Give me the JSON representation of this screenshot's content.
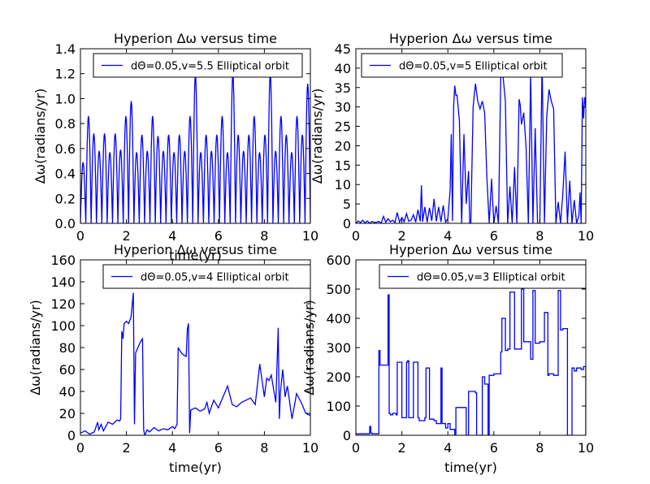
{
  "figure_title": "",
  "chart_data": [
    {
      "type": "line",
      "title": "Hyperion  Δω versus time",
      "xlabel": "time(yr)",
      "ylabel": "Δω(radians/yr)",
      "xlim": [
        0,
        10
      ],
      "ylim": [
        0,
        1.4
      ],
      "xticks": [
        "0",
        "2",
        "4",
        "6",
        "8",
        "10"
      ],
      "yticks": [
        "0.0",
        "0.2",
        "0.4",
        "0.6",
        "0.8",
        "1.0",
        "1.2",
        "1.4"
      ],
      "legend": "dΘ=0.05,v=5.5 Elliptical orbit",
      "legend_loc": "upper-right",
      "series_color": "#0000ff",
      "series_style": "oscillation",
      "series": [
        {
          "name": "dΘ=0.05,v=5.5 Elliptical orbit",
          "peaks": [
            0.49,
            0.86,
            0.72,
            0.58,
            0.72,
            0.57,
            0.72,
            0.59,
            0.86,
            0.98,
            0.57,
            0.71,
            0.58,
            0.86,
            0.7,
            0.58,
            0.71,
            0.57,
            0.71,
            0.58,
            0.86,
            1.2,
            0.57,
            0.71,
            0.58,
            0.71,
            0.86,
            0.57,
            1.2,
            0.71,
            0.58,
            0.71,
            0.86,
            0.57,
            0.71,
            1.2,
            0.58,
            0.86,
            0.71,
            0.57,
            0.86,
            0.71,
            1.12
          ]
        }
      ]
    },
    {
      "type": "line",
      "title": "Hyperion  Δω versus time",
      "xlabel": "",
      "ylabel": "Δω(radians/yr)",
      "xlim": [
        0,
        10
      ],
      "ylim": [
        0,
        45
      ],
      "xticks": [
        "0",
        "2",
        "4",
        "6",
        "8",
        "10"
      ],
      "yticks": [
        "0",
        "5",
        "10",
        "15",
        "20",
        "25",
        "30",
        "35",
        "40",
        "45"
      ],
      "legend": "dΘ=0.05,v=5 Elliptical orbit",
      "legend_loc": "upper-right",
      "series_color": "#0000ff",
      "series_style": "path",
      "series": [
        {
          "name": "dΘ=0.05,v=5 Elliptical orbit",
          "x": [
            0,
            0.1,
            0.2,
            0.3,
            0.4,
            0.5,
            0.6,
            0.7,
            0.8,
            0.9,
            1.0,
            1.1,
            1.2,
            1.3,
            1.4,
            1.5,
            1.6,
            1.7,
            1.8,
            1.9,
            2.0,
            2.1,
            2.2,
            2.3,
            2.4,
            2.5,
            2.6,
            2.7,
            2.8,
            2.85,
            2.9,
            3.0,
            3.1,
            3.2,
            3.3,
            3.4,
            3.5,
            3.6,
            3.7,
            3.8,
            3.9,
            4.0,
            4.1,
            4.15,
            4.2,
            4.25,
            4.3,
            4.35,
            4.4,
            4.5,
            4.6,
            4.7,
            4.8,
            4.9,
            4.95,
            5.0,
            5.1,
            5.2,
            5.3,
            5.4,
            5.5,
            5.6,
            5.7,
            5.8,
            5.9,
            6.0,
            6.1,
            6.2,
            6.3,
            6.4,
            6.5,
            6.6,
            6.7,
            6.8,
            6.9,
            7.0,
            7.1,
            7.15,
            7.2,
            7.3,
            7.4,
            7.5,
            7.6,
            7.7,
            7.8,
            7.9,
            8.0,
            8.1,
            8.2,
            8.3,
            8.4,
            8.5,
            8.6,
            8.7,
            8.8,
            8.9,
            9.0,
            9.1,
            9.2,
            9.3,
            9.4,
            9.5,
            9.6,
            9.7,
            9.75,
            9.8,
            9.85,
            9.9,
            9.95,
            10.0
          ],
          "y": [
            0,
            0.6,
            0.2,
            0.8,
            0.1,
            0.6,
            0,
            0.5,
            0.2,
            0.3,
            0.5,
            0,
            1.8,
            0.3,
            1.2,
            0.4,
            0.8,
            0.2,
            2.8,
            0.3,
            1.5,
            0.4,
            2.5,
            0.5,
            0.8,
            2.2,
            0.3,
            3.5,
            0.5,
            9.8,
            0.4,
            4.2,
            0.3,
            4.0,
            0.6,
            6.3,
            0.5,
            4.2,
            0.4,
            4.6,
            0.3,
            1.2,
            8.5,
            23.0,
            0.6,
            30.0,
            35.5,
            33.0,
            33.0,
            26.5,
            0,
            23.0,
            5.0,
            13.5,
            0,
            0,
            30.0,
            36.0,
            31.5,
            29.5,
            31.5,
            28.5,
            11.5,
            0,
            11.5,
            0,
            4.5,
            0,
            37.5,
            38.0,
            31.5,
            0,
            9.5,
            0,
            14.5,
            0,
            32.0,
            30.5,
            25.5,
            28.5,
            20.0,
            0,
            38.5,
            0,
            24.5,
            0,
            0,
            41.5,
            0,
            27.5,
            34.5,
            31.5,
            29.5,
            0,
            5.5,
            0,
            7.5,
            18.5,
            0,
            11.0,
            0,
            6.0,
            0,
            2.0,
            8.0,
            0,
            32.5,
            27.0,
            32.5,
            30.0
          ]
        }
      ]
    },
    {
      "type": "line",
      "title": "Hyperion  Δω versus time",
      "xlabel": "time(yr)",
      "ylabel": "Δω(radians/yr)",
      "xlim": [
        0,
        10
      ],
      "ylim": [
        0,
        160
      ],
      "xticks": [
        "0",
        "2",
        "4",
        "6",
        "8",
        "10"
      ],
      "yticks": [
        "0",
        "20",
        "40",
        "60",
        "80",
        "100",
        "120",
        "140",
        "160"
      ],
      "legend": "dΘ=0.05,v=4 Elliptical orbit",
      "legend_loc": "upper-right",
      "series_color": "#0000ff",
      "series_style": "path",
      "series": [
        {
          "name": "dΘ=0.05,v=4 Elliptical orbit",
          "x": [
            0,
            0.2,
            0.4,
            0.6,
            0.75,
            0.8,
            0.9,
            1.0,
            1.2,
            1.4,
            1.6,
            1.7,
            1.75,
            1.8,
            1.85,
            1.9,
            2.0,
            2.1,
            2.2,
            2.3,
            2.35,
            2.4,
            2.5,
            2.6,
            2.7,
            2.75,
            2.8,
            2.9,
            3.0,
            3.2,
            3.4,
            3.6,
            3.8,
            4.0,
            4.1,
            4.2,
            4.25,
            4.3,
            4.4,
            4.5,
            4.6,
            4.65,
            4.7,
            4.75,
            4.8,
            5.0,
            5.2,
            5.4,
            5.5,
            5.6,
            5.8,
            6.0,
            6.2,
            6.4,
            6.6,
            6.8,
            7.0,
            7.2,
            7.4,
            7.6,
            7.8,
            8.0,
            8.1,
            8.2,
            8.3,
            8.4,
            8.5,
            8.6,
            8.65,
            8.7,
            8.8,
            8.9,
            9.0,
            9.2,
            9.4,
            9.6,
            9.8,
            10.0
          ],
          "y": [
            2,
            4,
            1,
            3,
            12,
            5,
            10,
            4,
            12,
            10,
            14,
            13,
            15,
            95,
            88,
            102,
            104,
            102,
            108,
            130,
            10,
            75,
            80,
            85,
            88,
            5,
            0,
            5,
            3,
            7,
            4,
            6,
            5,
            8,
            6,
            10,
            80,
            78,
            75,
            73,
            72,
            97,
            102,
            2,
            23,
            25,
            22,
            24,
            30,
            20,
            32,
            25,
            35,
            45,
            28,
            26,
            30,
            32,
            34,
            28,
            65,
            35,
            52,
            50,
            55,
            42,
            30,
            98,
            15,
            40,
            60,
            35,
            45,
            15,
            38,
            30,
            20,
            18
          ]
        }
      ]
    },
    {
      "type": "line",
      "title": "Hyperion  Δω versus time",
      "xlabel": "time(yr)",
      "ylabel": "Δω(radians/yr)",
      "xlim": [
        0,
        10
      ],
      "ylim": [
        0,
        600
      ],
      "xticks": [
        "0",
        "2",
        "4",
        "6",
        "8",
        "10"
      ],
      "yticks": [
        "0",
        "100",
        "200",
        "300",
        "400",
        "500",
        "600"
      ],
      "legend": "dΘ=0.05,v=3 Elliptical orbit",
      "legend_loc": "upper-right",
      "series_color": "#0000ff",
      "series_style": "steps",
      "series": [
        {
          "name": "dΘ=0.05,v=3 Elliptical orbit",
          "x": [
            0,
            0.6,
            0.65,
            0.7,
            1.0,
            1.05,
            1.1,
            1.4,
            1.45,
            1.5,
            1.6,
            1.75,
            1.8,
            2.0,
            2.2,
            2.25,
            2.3,
            2.5,
            2.7,
            2.75,
            3.0,
            3.05,
            3.2,
            3.4,
            3.5,
            3.7,
            3.75,
            3.9,
            4.0,
            4.1,
            4.3,
            4.35,
            4.5,
            4.8,
            4.9,
            5.2,
            5.25,
            5.5,
            5.6,
            5.75,
            5.8,
            6.0,
            6.3,
            6.35,
            6.5,
            6.6,
            6.7,
            6.9,
            7.0,
            7.2,
            7.3,
            7.4,
            7.6,
            7.7,
            7.8,
            8.0,
            8.2,
            8.35,
            8.4,
            8.6,
            8.8,
            8.9,
            9.0,
            9.2,
            9.4,
            9.5,
            9.6,
            9.8,
            9.9,
            10.0
          ],
          "y": [
            5,
            30,
            8,
            5,
            290,
            240,
            240,
            480,
            75,
            70,
            75,
            70,
            250,
            60,
            250,
            255,
            60,
            250,
            60,
            50,
            60,
            230,
            55,
            50,
            40,
            230,
            40,
            25,
            40,
            20,
            0,
            95,
            95,
            0,
            150,
            145,
            0,
            200,
            175,
            0,
            205,
            210,
            285,
            400,
            290,
            295,
            490,
            295,
            295,
            500,
            320,
            320,
            260,
            495,
            315,
            320,
            420,
            205,
            210,
            205,
            495,
            360,
            365,
            0,
            230,
            220,
            230,
            225,
            235,
            0
          ]
        }
      ]
    }
  ]
}
